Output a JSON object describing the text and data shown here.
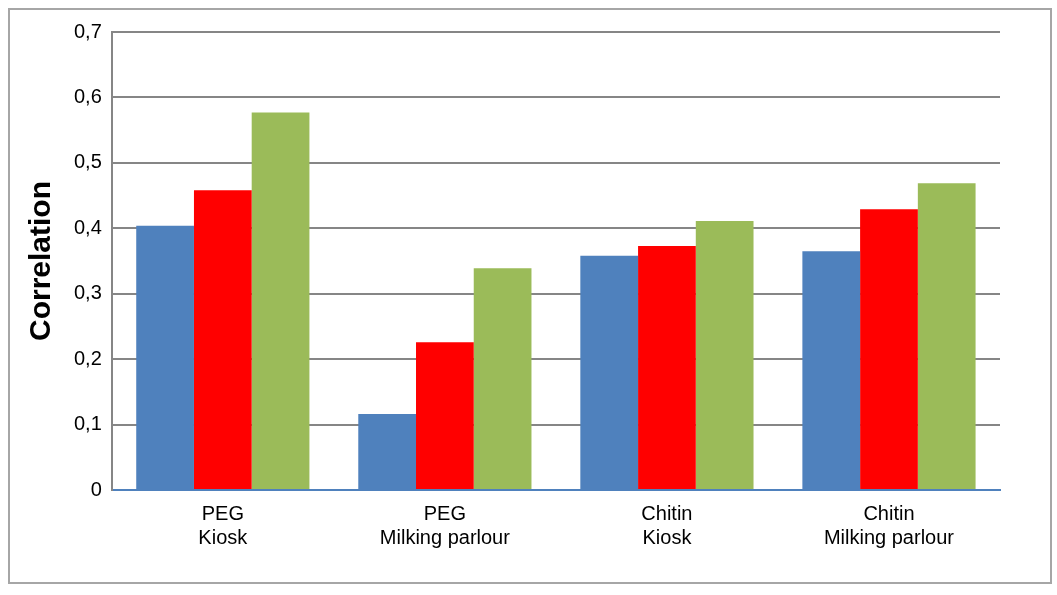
{
  "chart_data": {
    "type": "bar",
    "ylabel": "Correlation",
    "categories": [
      "PEG\nKiosk",
      "PEG\nMilking parlour",
      "Chitin\nKiosk",
      "Chitin\nMilking parlour"
    ],
    "series": [
      {
        "color": "#4f81bd",
        "values": [
          0.404,
          0.116,
          0.358,
          0.365
        ]
      },
      {
        "color": "#ff0000",
        "values": [
          0.458,
          0.226,
          0.373,
          0.429
        ]
      },
      {
        "color": "#9bbb59",
        "values": [
          0.577,
          0.339,
          0.411,
          0.469
        ]
      }
    ],
    "ylim": [
      0,
      0.7
    ],
    "yticks": [
      {
        "value": 0,
        "label": "0"
      },
      {
        "value": 0.1,
        "label": "0,1"
      },
      {
        "value": 0.2,
        "label": "0,2"
      },
      {
        "value": 0.3,
        "label": "0,3"
      },
      {
        "value": 0.4,
        "label": "0,4"
      },
      {
        "value": 0.5,
        "label": "0,5"
      },
      {
        "value": 0.6,
        "label": "0,6"
      },
      {
        "value": 0.7,
        "label": "0,7"
      }
    ],
    "grid": "y",
    "legend": false
  }
}
